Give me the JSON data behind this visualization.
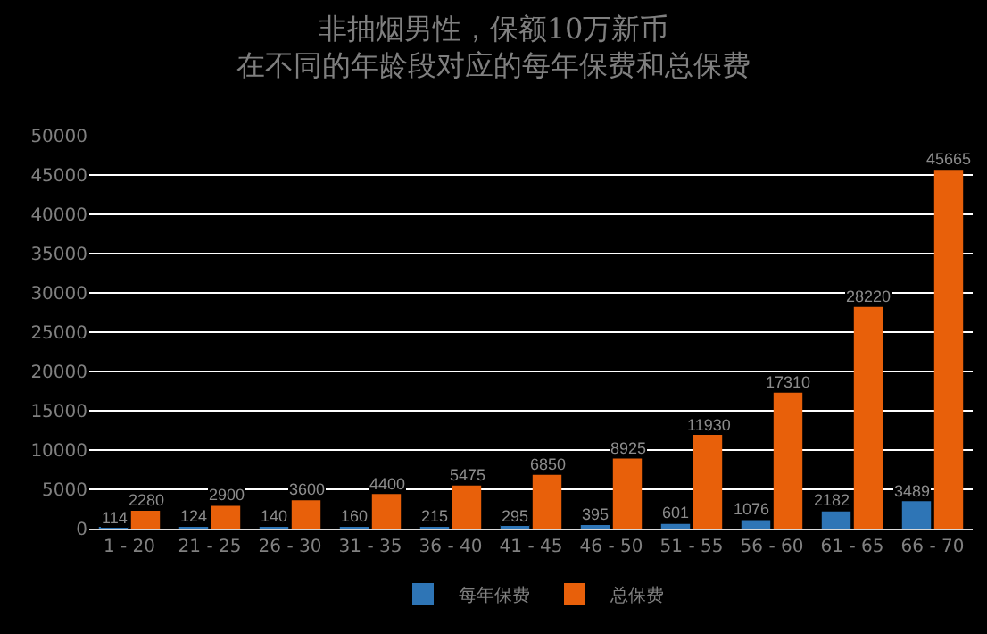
{
  "chart_data": {
    "type": "bar",
    "title": "非抽烟男性，保额10万新币",
    "subtitle": "在不同的年龄段对应的每年保费和总保费",
    "categories": [
      "1 - 20",
      "21 - 25",
      "26 - 30",
      "31 - 35",
      "36 - 40",
      "41 - 45",
      "46 - 50",
      "51 - 55",
      "56 - 60",
      "61 - 65",
      "66 - 70"
    ],
    "series": [
      {
        "name": "每年保费",
        "color": "#2e75b6",
        "values": [
          114,
          124,
          140,
          160,
          215,
          295,
          395,
          601,
          1076,
          2182,
          3489
        ]
      },
      {
        "name": "总保费",
        "color": "#e8600a",
        "values": [
          2280,
          2900,
          3600,
          4400,
          5475,
          6850,
          8925,
          11930,
          17310,
          28220,
          45665
        ]
      }
    ],
    "ylim": [
      0,
      50000
    ],
    "yticks": [
      0,
      5000,
      10000,
      15000,
      20000,
      25000,
      30000,
      35000,
      40000,
      45000,
      50000
    ],
    "grid": "y",
    "legend": "bottom",
    "data_labels": true
  }
}
